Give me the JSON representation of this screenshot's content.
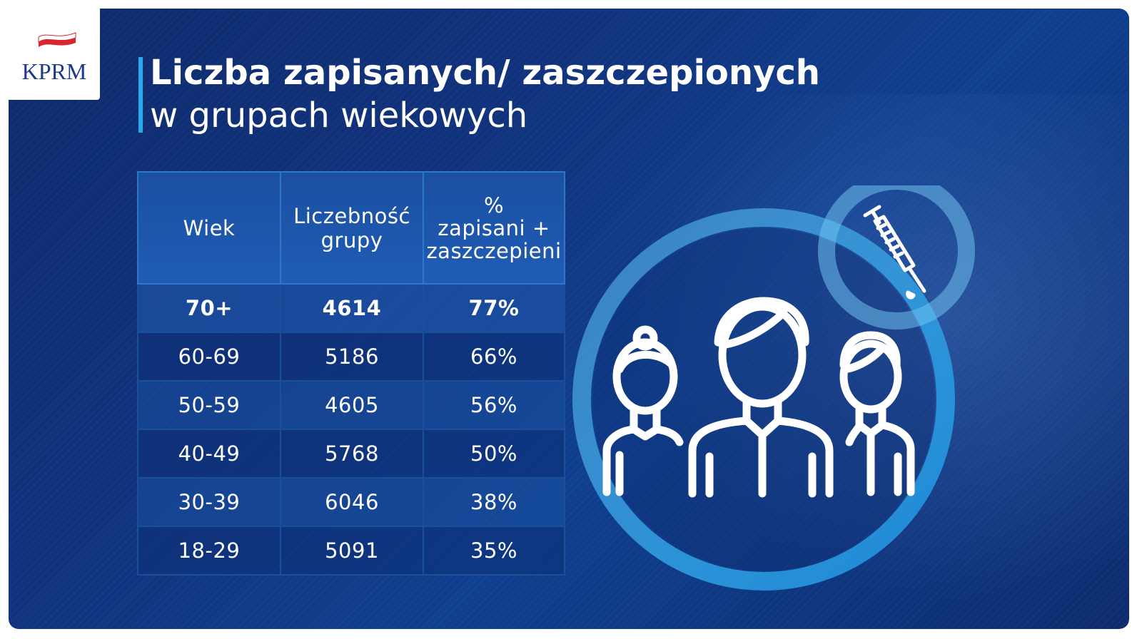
{
  "logo": {
    "text": "KPRM"
  },
  "title": {
    "line1": "Liczba zapisanych/ zaszczepionych",
    "line2": "w grupach wiekowych"
  },
  "colors": {
    "background": "#11337d",
    "accent_bar": "#28a9e8",
    "table_border": "#1a4f9a",
    "logo_text": "#1d3a8a",
    "flag_red": "#d9262e"
  },
  "icons": [
    "poland-flag-icon",
    "syringe-icon",
    "people-group-icon"
  ],
  "chart_data": {
    "type": "table",
    "columns": [
      "Wiek",
      "Liczebność grupy",
      "% zapisani + zaszczepieni"
    ],
    "header": {
      "age": "Wiek",
      "count_line1": "Liczebność",
      "count_line2": "grupy",
      "pct_line1": "%",
      "pct_line2": "zapisani +",
      "pct_line3": "zaszczepieni"
    },
    "rows": [
      {
        "age": "70+",
        "count": "4614",
        "pct": "77%"
      },
      {
        "age": "60-69",
        "count": "5186",
        "pct": "66%"
      },
      {
        "age": "50-59",
        "count": "4605",
        "pct": "56%"
      },
      {
        "age": "40-49",
        "count": "5768",
        "pct": "50%"
      },
      {
        "age": "30-39",
        "count": "6046",
        "pct": "38%"
      },
      {
        "age": "18-29",
        "count": "5091",
        "pct": "35%"
      }
    ]
  }
}
